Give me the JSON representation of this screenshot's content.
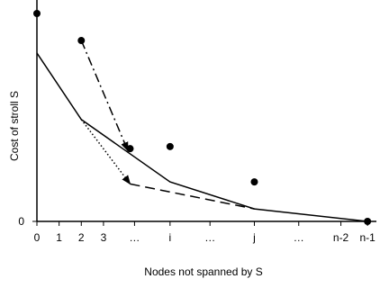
{
  "chart_data": {
    "type": "line",
    "title": "",
    "xlabel": "Nodes not spanned by S",
    "ylabel": "Cost of stroll S",
    "x_ticks": [
      {
        "pos": 0,
        "label": "0"
      },
      {
        "pos": 1,
        "label": "1"
      },
      {
        "pos": 2,
        "label": "2"
      },
      {
        "pos": 3,
        "label": "3"
      },
      {
        "pos": 4.4,
        "label": "…"
      },
      {
        "pos": 6,
        "label": "i"
      },
      {
        "pos": 7.8,
        "label": "…"
      },
      {
        "pos": 9.8,
        "label": "j"
      },
      {
        "pos": 11.8,
        "label": "…"
      },
      {
        "pos": 13.7,
        "label": "n-2"
      },
      {
        "pos": 14.9,
        "label": "n-1"
      }
    ],
    "y_ticks": [
      {
        "pos": 0,
        "label": "0"
      }
    ],
    "xlim": [
      0,
      15.3
    ],
    "ylim": [
      0,
      100
    ],
    "series": [
      {
        "style": "solid-line",
        "points": [
          [
            0,
            81
          ],
          [
            2,
            49
          ],
          [
            6,
            19
          ],
          [
            9.8,
            6
          ],
          [
            14.9,
            0
          ]
        ]
      },
      {
        "style": "dash-dot-arrow",
        "points": [
          [
            2,
            87
          ],
          [
            4.1,
            34
          ]
        ]
      },
      {
        "style": "dotted-arrow",
        "points": [
          [
            2,
            49
          ],
          [
            4.2,
            18
          ]
        ]
      },
      {
        "style": "dashed-line",
        "points": [
          [
            4.2,
            18
          ],
          [
            9.8,
            6
          ]
        ]
      },
      {
        "style": "scatter",
        "points": [
          [
            0,
            100
          ],
          [
            2,
            87
          ],
          [
            4.2,
            35
          ],
          [
            6,
            36
          ],
          [
            9.8,
            19
          ],
          [
            14.9,
            0
          ]
        ]
      }
    ]
  }
}
